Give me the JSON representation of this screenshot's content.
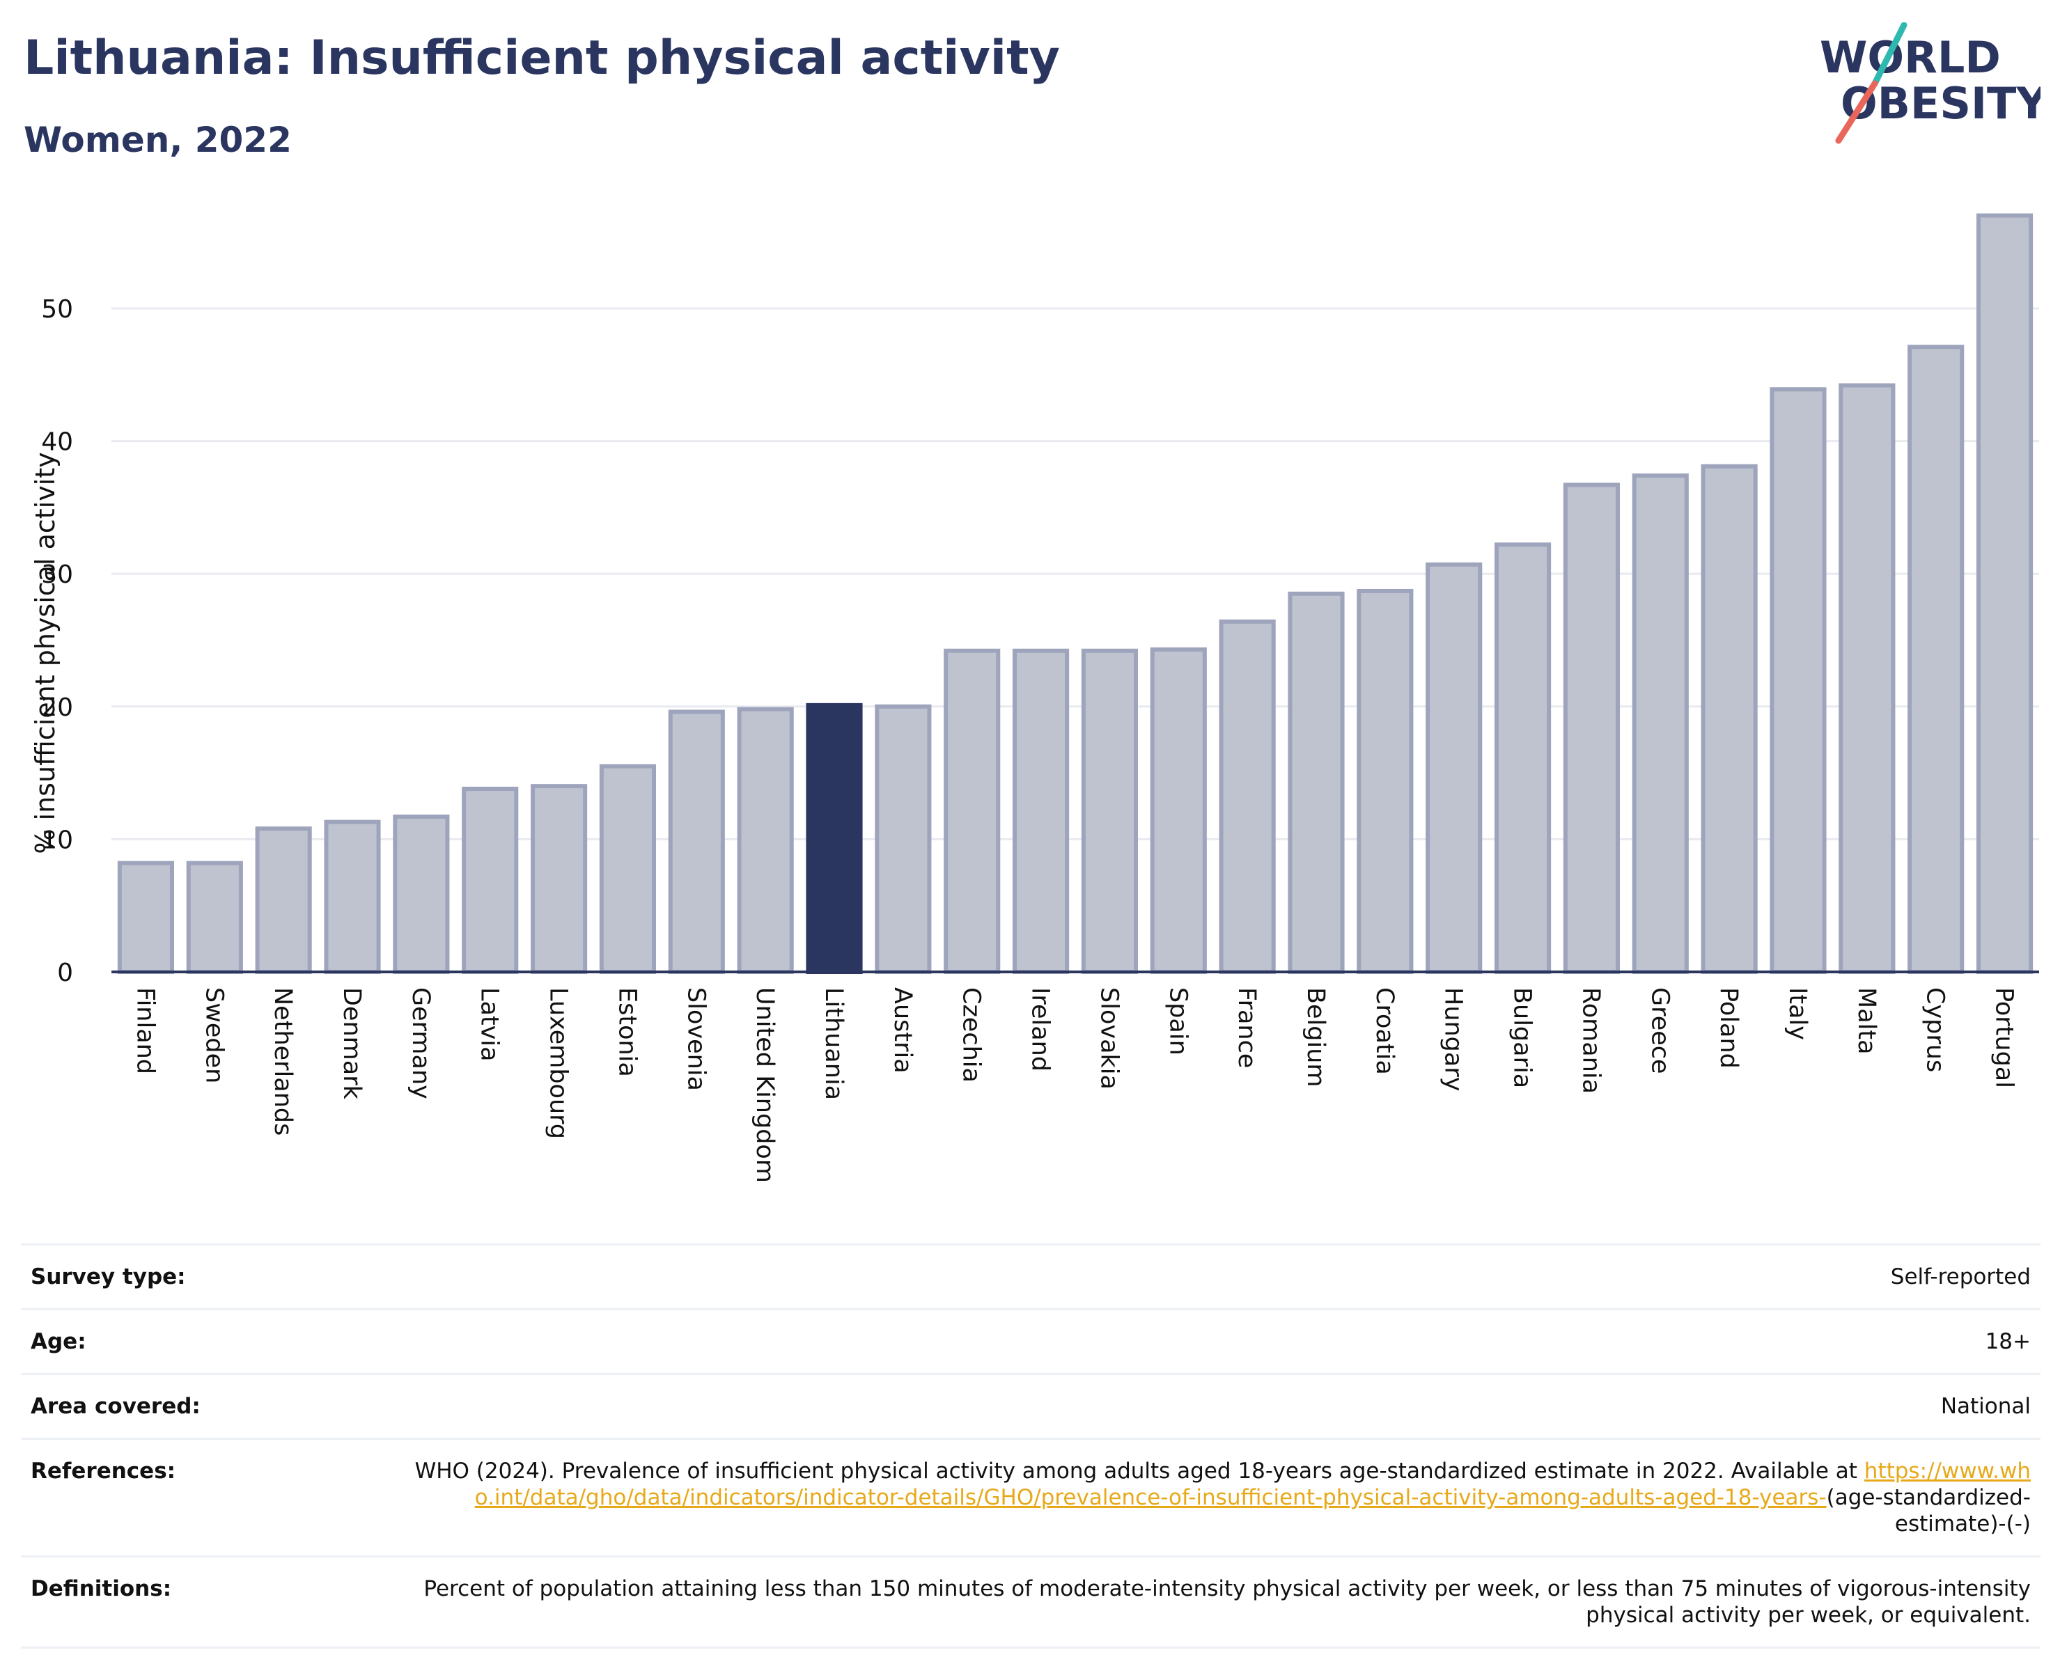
{
  "header": {
    "title": "Lithuania: Insufficient physical activity",
    "subtitle": "Women, 2022"
  },
  "logo": {
    "line1": "WORLD",
    "line2": "OBESITY",
    "colors": {
      "text": "#2a3560",
      "teal": "#2fb8b0",
      "coral": "#e8665a"
    }
  },
  "colors": {
    "bar": "#bfc3d0",
    "bar_outline": "#9ea4bb",
    "highlight": "#2a3560",
    "grid": "#e8eaf0",
    "axis": "#2a3560",
    "link": "#e7a91a"
  },
  "chart_data": {
    "type": "bar",
    "ylabel": "% insufficient physical activity",
    "xlabel": "",
    "ylim": [
      0,
      57.5
    ],
    "yticks": [
      0,
      10,
      20,
      30,
      40,
      50
    ],
    "grid": true,
    "highlight": "Lithuania",
    "categories": [
      "Finland",
      "Sweden",
      "Netherlands",
      "Denmark",
      "Germany",
      "Latvia",
      "Luxembourg",
      "Estonia",
      "Slovenia",
      "United Kingdom",
      "Lithuania",
      "Austria",
      "Czechia",
      "Ireland",
      "Slovakia",
      "Spain",
      "France",
      "Belgium",
      "Croatia",
      "Hungary",
      "Bulgaria",
      "Romania",
      "Greece",
      "Poland",
      "Italy",
      "Malta",
      "Cyprus",
      "Portugal"
    ],
    "values": [
      8.2,
      8.2,
      10.8,
      11.3,
      11.7,
      13.8,
      14.0,
      15.5,
      19.6,
      19.8,
      20.1,
      20.0,
      24.2,
      24.2,
      24.2,
      24.3,
      26.4,
      28.5,
      28.7,
      30.7,
      32.2,
      36.7,
      37.4,
      38.1,
      43.9,
      44.2,
      47.1,
      57.0
    ]
  },
  "meta": {
    "survey_type": {
      "label": "Survey type:",
      "value": "Self-reported"
    },
    "age": {
      "label": "Age:",
      "value": "18+"
    },
    "area": {
      "label": "Area covered:",
      "value": "National"
    },
    "references": {
      "label": "References:",
      "text": "WHO (2024). Prevalence of insufficient physical activity among adults aged 18-years age-standardized estimate in 2022. Available at",
      "link": "https://www.who.int/data/gho/data/indicators/indicator-details/GHO/prevalence-of-insufficient-physical-activity-among-adults-aged-18-years-",
      "suffix": "(age-standardized-estimate)-(-)"
    },
    "definitions": {
      "label": "Definitions:",
      "value": "Percent of population attaining less than 150 minutes of moderate-intensity physical activity per week, or less than 75 minutes of vigorous-intensity physical activity per week, or equivalent."
    }
  }
}
